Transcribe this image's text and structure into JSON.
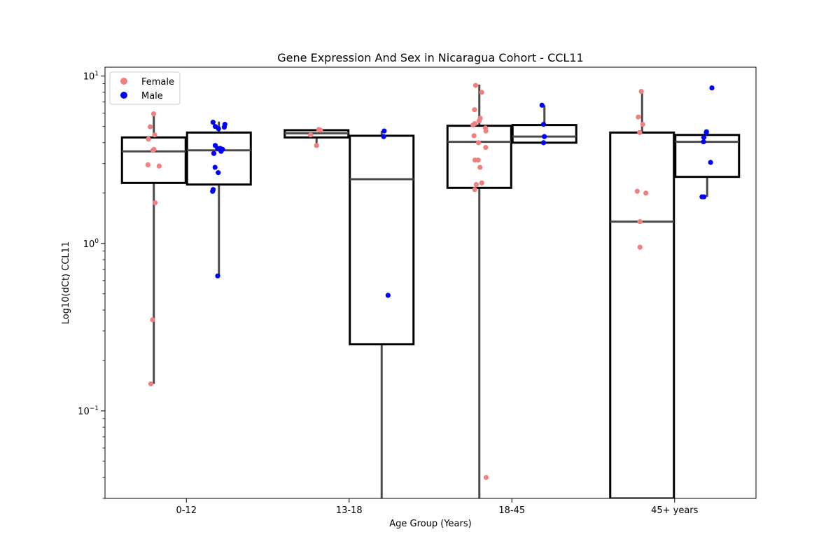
{
  "chart_data": {
    "type": "box",
    "title": "Gene Expression And Sex in Nicaragua Cohort - CCL11",
    "xlabel": "Age Group (Years)",
    "ylabel": "Log10(dCt) CCL11",
    "yscale": "log",
    "ylim": [
      0.03,
      11.3
    ],
    "y_ticks": [
      {
        "value": 0.1,
        "base": "10",
        "exp": "−1"
      },
      {
        "value": 1,
        "base": "10",
        "exp": "0"
      },
      {
        "value": 10,
        "base": "10",
        "exp": "1"
      }
    ],
    "categories": [
      "0-12",
      "13-18",
      "18-45",
      "45+ years"
    ],
    "legend": {
      "position": "top-left"
    },
    "series": [
      {
        "name": "Female",
        "color": "#f08080",
        "boxes": [
          {
            "whisker_low": 0.145,
            "q1": 2.3,
            "median": 3.55,
            "q3": 4.3,
            "whisker_high": 6.0
          },
          {
            "whisker_low": 3.8,
            "q1": 4.3,
            "median": 4.55,
            "q3": 4.75,
            "whisker_high": 4.8
          },
          {
            "whisker_low": 0.03,
            "q1": 2.15,
            "median": 4.05,
            "q3": 5.05,
            "whisker_high": 8.9
          },
          {
            "whisker_low": 0.03,
            "q1": 0.03,
            "median": 1.35,
            "q3": 4.6,
            "whisker_high": 8.2
          }
        ],
        "points": [
          [
            5.95,
            4.45,
            4.2,
            4.98,
            3.6,
            3.65,
            2.95,
            2.9,
            1.75,
            0.35,
            0.145
          ],
          [
            4.75,
            4.8,
            4.45,
            3.85
          ],
          [
            8.8,
            8.0,
            6.3,
            5.6,
            5.4,
            5.2,
            5.1,
            4.9,
            4.7,
            4.4,
            4.0,
            3.75,
            3.15,
            3.15,
            2.85,
            2.3,
            2.25,
            2.1,
            0.04
          ],
          [
            8.1,
            5.7,
            5.15,
            4.6,
            2.05,
            2.0,
            1.35,
            0.95
          ]
        ]
      },
      {
        "name": "Male",
        "color": "#0000ff",
        "boxes": [
          {
            "whisker_low": 0.64,
            "q1": 2.25,
            "median": 3.6,
            "q3": 4.6,
            "whisker_high": 5.35
          },
          {
            "whisker_low": 0.03,
            "q1": 0.25,
            "median": 2.42,
            "q3": 4.4,
            "whisker_high": 4.7
          },
          {
            "whisker_low": 4.0,
            "q1": 4.0,
            "median": 4.35,
            "q3": 5.1,
            "whisker_high": 6.7
          },
          {
            "whisker_low": 1.9,
            "q1": 2.5,
            "median": 4.05,
            "q3": 4.45,
            "whisker_high": 4.65
          }
        ],
        "points": [
          [
            5.3,
            5.15,
            5.0,
            4.95,
            4.85,
            3.85,
            3.7,
            3.7,
            3.65,
            3.55,
            3.45,
            2.85,
            2.65,
            2.1,
            2.05,
            0.64
          ],
          [
            4.7,
            4.35,
            0.49
          ],
          [
            6.7,
            5.15,
            4.35,
            4.0
          ],
          [
            8.5,
            4.65,
            4.6,
            4.3,
            4.05,
            3.05,
            1.9,
            1.9
          ]
        ]
      }
    ]
  }
}
